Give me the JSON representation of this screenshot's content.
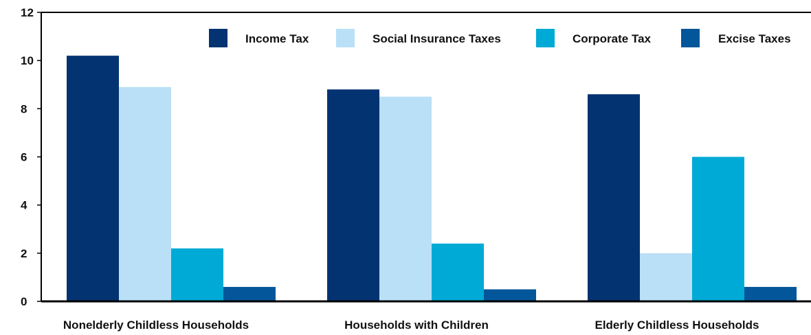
{
  "chart_data": {
    "type": "bar",
    "title": "",
    "xlabel": "",
    "ylabel": "",
    "ylim": [
      0,
      12
    ],
    "yticks": [
      0,
      2,
      4,
      6,
      8,
      10,
      12
    ],
    "grid": false,
    "legend_position": "top-right",
    "categories": [
      "Nonelderly Childless Households",
      "Households with Children",
      "Elderly Childless Households"
    ],
    "series": [
      {
        "name": "Income Tax",
        "color": "#033371",
        "values": [
          10.2,
          8.8,
          8.6
        ]
      },
      {
        "name": "Social Insurance Taxes",
        "color": "#b9e0f6",
        "values": [
          8.9,
          8.5,
          2.0
        ]
      },
      {
        "name": "Corporate Tax",
        "color": "#00aad6",
        "values": [
          2.2,
          2.4,
          6.0
        ]
      },
      {
        "name": "Excise Taxes",
        "color": "#03569a",
        "values": [
          0.6,
          0.5,
          0.6
        ]
      }
    ]
  }
}
